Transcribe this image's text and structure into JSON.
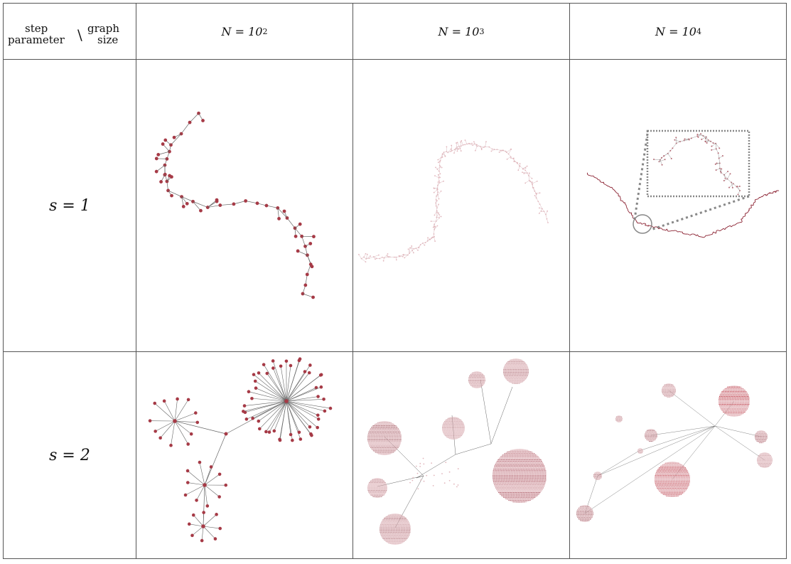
{
  "table": {
    "corner": {
      "top_left": "step",
      "bottom_left": "parameter",
      "separator": "\\",
      "top_right": "graph",
      "bottom_right": "size"
    },
    "columns": [
      {
        "base": "N = 10",
        "exp": "2"
      },
      {
        "base": "N = 10",
        "exp": "3"
      },
      {
        "base": "N = 10",
        "exp": "4"
      }
    ],
    "rows": [
      {
        "label": "s = 1"
      },
      {
        "label": "s = 2"
      }
    ]
  },
  "colors": {
    "node": "#a63a46",
    "node_light": "#e2b6bc",
    "edge": "#666666",
    "zoom_box": "#888888"
  }
}
